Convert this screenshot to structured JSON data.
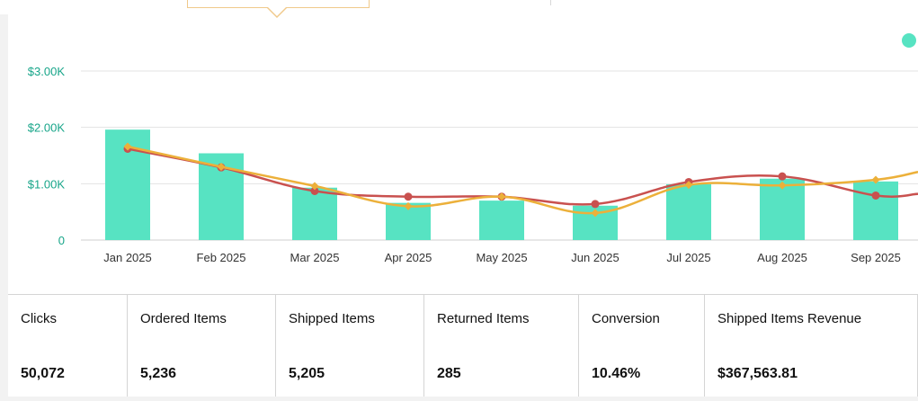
{
  "chart_data": {
    "type": "bar",
    "categories": [
      "Jan 2025",
      "Feb 2025",
      "Mar 2025",
      "Apr 2025",
      "May 2025",
      "Jun 2025",
      "Jul 2025",
      "Aug 2025",
      "Sep 2025"
    ],
    "y_ticks": [
      {
        "value": 0,
        "label": "0"
      },
      {
        "value": 1000,
        "label": "$1.00K"
      },
      {
        "value": 2000,
        "label": "$2.00K"
      },
      {
        "value": 3000,
        "label": "$3.00K"
      }
    ],
    "ylim": [
      0,
      3000
    ],
    "grid": true,
    "series": [
      {
        "kind": "bar",
        "color": "#57e3c2",
        "values": [
          1960,
          1540,
          930,
          660,
          700,
          610,
          990,
          1090,
          1040
        ]
      },
      {
        "kind": "line",
        "color": "#c9514f",
        "values": [
          1620,
          1290,
          870,
          770,
          770,
          640,
          1030,
          1130,
          790
        ],
        "trail": 820
      },
      {
        "kind": "line",
        "color": "#ecb03a",
        "values": [
          1660,
          1300,
          960,
          600,
          770,
          480,
          980,
          970,
          1070
        ],
        "trail": 1210
      }
    ],
    "legend_dot_color": "#57e3c2"
  },
  "stats": [
    {
      "label": "Clicks",
      "value": "50,072"
    },
    {
      "label": "Ordered Items",
      "value": "5,236"
    },
    {
      "label": "Shipped Items",
      "value": "5,205"
    },
    {
      "label": "Returned Items",
      "value": "285"
    },
    {
      "label": "Conversion",
      "value": "10.46%"
    },
    {
      "label": "Shipped Items Revenue",
      "value": "$367,563.81"
    }
  ]
}
